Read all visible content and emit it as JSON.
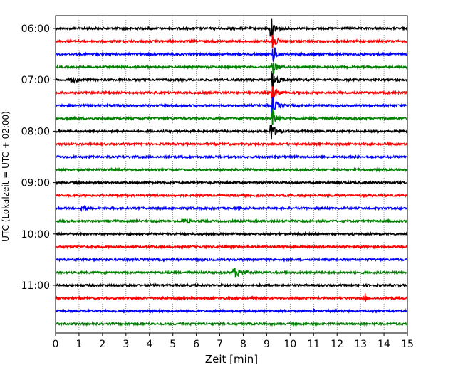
{
  "chart_data": {
    "type": "line",
    "subtype": "helicorder",
    "xlabel": "Zeit  [min]",
    "ylabel": "UTC (Lokalzeit = UTC + 02:00)",
    "xlim": [
      0,
      15
    ],
    "x_ticks": [
      "0",
      "1",
      "2",
      "3",
      "4",
      "5",
      "6",
      "7",
      "8",
      "9",
      "10",
      "11",
      "12",
      "13",
      "14",
      "15"
    ],
    "y_ticks": [
      "06:00",
      "07:00",
      "08:00",
      "09:00",
      "10:00",
      "11:00"
    ],
    "grid": "vertical dotted lines at each minute",
    "trace_interval_minutes": 15,
    "trace_count": 24,
    "trace_colors": [
      "#000000",
      "#ff0000",
      "#0000ff",
      "#008000"
    ],
    "series": [
      {
        "start": "06:00",
        "color": "#000000",
        "events": [
          {
            "x": 9.2,
            "amplitude": 1.0,
            "kind": "large"
          }
        ]
      },
      {
        "start": "06:15",
        "color": "#ff0000",
        "events": [
          {
            "x": 9.25,
            "amplitude": 1.0,
            "kind": "large"
          }
        ]
      },
      {
        "start": "06:30",
        "color": "#0000ff",
        "events": [
          {
            "x": 9.3,
            "amplitude": 0.8,
            "kind": "large"
          }
        ]
      },
      {
        "start": "06:45",
        "color": "#008000",
        "events": [
          {
            "x": 9.25,
            "amplitude": 0.9,
            "kind": "large"
          }
        ]
      },
      {
        "start": "07:00",
        "color": "#000000",
        "events": [
          {
            "x": 0.6,
            "amplitude": 0.55,
            "kind": "burst"
          },
          {
            "x": 9.25,
            "amplitude": 1.0,
            "kind": "large"
          },
          {
            "x": 14.7,
            "amplitude": 0.25,
            "kind": "small"
          }
        ]
      },
      {
        "start": "07:15",
        "color": "#ff0000",
        "events": [
          {
            "x": 9.25,
            "amplitude": 1.0,
            "kind": "large"
          }
        ]
      },
      {
        "start": "07:30",
        "color": "#0000ff",
        "events": [
          {
            "x": 9.25,
            "amplitude": 1.0,
            "kind": "large"
          }
        ]
      },
      {
        "start": "07:45",
        "color": "#008000",
        "events": [
          {
            "x": 9.25,
            "amplitude": 1.0,
            "kind": "large"
          },
          {
            "x": 12.5,
            "amplitude": 0.25,
            "kind": "small"
          }
        ]
      },
      {
        "start": "08:00",
        "color": "#000000",
        "events": [
          {
            "x": 9.2,
            "amplitude": 1.0,
            "kind": "large"
          }
        ]
      },
      {
        "start": "08:15",
        "color": "#ff0000",
        "events": []
      },
      {
        "start": "08:30",
        "color": "#0000ff",
        "events": []
      },
      {
        "start": "08:45",
        "color": "#008000",
        "events": [
          {
            "x": 4.5,
            "amplitude": 0.15,
            "kind": "small"
          }
        ]
      },
      {
        "start": "09:00",
        "color": "#000000",
        "events": [
          {
            "x": 14.2,
            "amplitude": 0.3,
            "kind": "small"
          }
        ]
      },
      {
        "start": "09:15",
        "color": "#ff0000",
        "events": [
          {
            "x": 8.8,
            "amplitude": 0.2,
            "kind": "small"
          }
        ]
      },
      {
        "start": "09:30",
        "color": "#0000ff",
        "events": [
          {
            "x": 1.1,
            "amplitude": 0.4,
            "kind": "burst"
          }
        ]
      },
      {
        "start": "09:45",
        "color": "#008000",
        "events": [
          {
            "x": 5.4,
            "amplitude": 0.45,
            "kind": "burst"
          }
        ]
      },
      {
        "start": "10:00",
        "color": "#000000",
        "events": []
      },
      {
        "start": "10:15",
        "color": "#ff0000",
        "events": [
          {
            "x": 11.3,
            "amplitude": 0.15,
            "kind": "small"
          }
        ]
      },
      {
        "start": "10:30",
        "color": "#0000ff",
        "events": []
      },
      {
        "start": "10:45",
        "color": "#008000",
        "events": [
          {
            "x": 7.6,
            "amplitude": 0.8,
            "kind": "burst"
          },
          {
            "x": 10.6,
            "amplitude": 0.2,
            "kind": "small"
          }
        ]
      },
      {
        "start": "11:00",
        "color": "#000000",
        "events": []
      },
      {
        "start": "11:15",
        "color": "#ff0000",
        "events": [
          {
            "x": 13.2,
            "amplitude": 0.5,
            "kind": "spike"
          }
        ]
      },
      {
        "start": "11:30",
        "color": "#0000ff",
        "events": [
          {
            "x": 11.0,
            "amplitude": 0.3,
            "kind": "spike"
          }
        ]
      },
      {
        "start": "11:45",
        "color": "#008000",
        "events": []
      }
    ]
  }
}
